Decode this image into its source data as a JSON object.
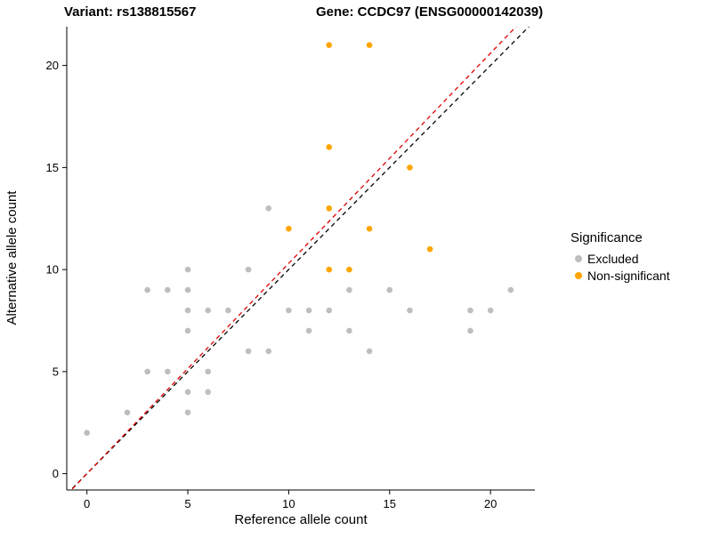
{
  "chart_data": {
    "type": "scatter",
    "title_left": "Variant: rs138815567",
    "title_right": "Gene: CCDC97 (ENSG00000142039)",
    "xlabel": "Reference allele count",
    "ylabel": "Alternative allele count",
    "xlim": [
      -1,
      22.2
    ],
    "ylim": [
      -0.8,
      21.9
    ],
    "x_ticks": [
      0,
      5,
      10,
      15,
      20
    ],
    "y_ticks": [
      0,
      5,
      10,
      15,
      20
    ],
    "grid": false,
    "legend": {
      "title": "Significance",
      "position": "right",
      "items": [
        {
          "label": "Excluded",
          "color": "#BEBEBE"
        },
        {
          "label": "Non-significant",
          "color": "#FFA500"
        }
      ]
    },
    "series": [
      {
        "name": "Excluded",
        "color": "#BEBEBE",
        "points": [
          [
            0,
            2
          ],
          [
            2,
            3
          ],
          [
            3,
            5
          ],
          [
            3,
            9
          ],
          [
            4,
            5
          ],
          [
            4,
            9
          ],
          [
            5,
            3
          ],
          [
            5,
            4
          ],
          [
            5,
            7
          ],
          [
            5,
            8
          ],
          [
            5,
            9
          ],
          [
            5,
            10
          ],
          [
            6,
            4
          ],
          [
            6,
            5
          ],
          [
            6,
            8
          ],
          [
            7,
            8
          ],
          [
            8,
            6
          ],
          [
            8,
            10
          ],
          [
            9,
            6
          ],
          [
            9,
            13
          ],
          [
            10,
            8
          ],
          [
            11,
            7
          ],
          [
            11,
            8
          ],
          [
            12,
            8
          ],
          [
            13,
            7
          ],
          [
            13,
            9
          ],
          [
            14,
            6
          ],
          [
            15,
            9
          ],
          [
            16,
            8
          ],
          [
            19,
            7
          ],
          [
            19,
            8
          ],
          [
            20,
            8
          ],
          [
            21,
            9
          ]
        ]
      },
      {
        "name": "Non-significant",
        "color": "#FFA500",
        "points": [
          [
            10,
            12
          ],
          [
            12,
            10
          ],
          [
            13,
            10
          ],
          [
            12,
            13
          ],
          [
            12,
            16
          ],
          [
            12,
            21
          ],
          [
            14,
            12
          ],
          [
            14,
            21
          ],
          [
            16,
            15
          ],
          [
            17,
            11
          ]
        ]
      }
    ],
    "ref_lines": [
      {
        "name": "identity-line",
        "slope": 1,
        "intercept": 0,
        "color": "#000000",
        "dash": "5,4"
      },
      {
        "name": "fit-line",
        "slope": 1.03,
        "intercept": 0,
        "color": "#DD0000",
        "dash": "5,4"
      }
    ]
  }
}
